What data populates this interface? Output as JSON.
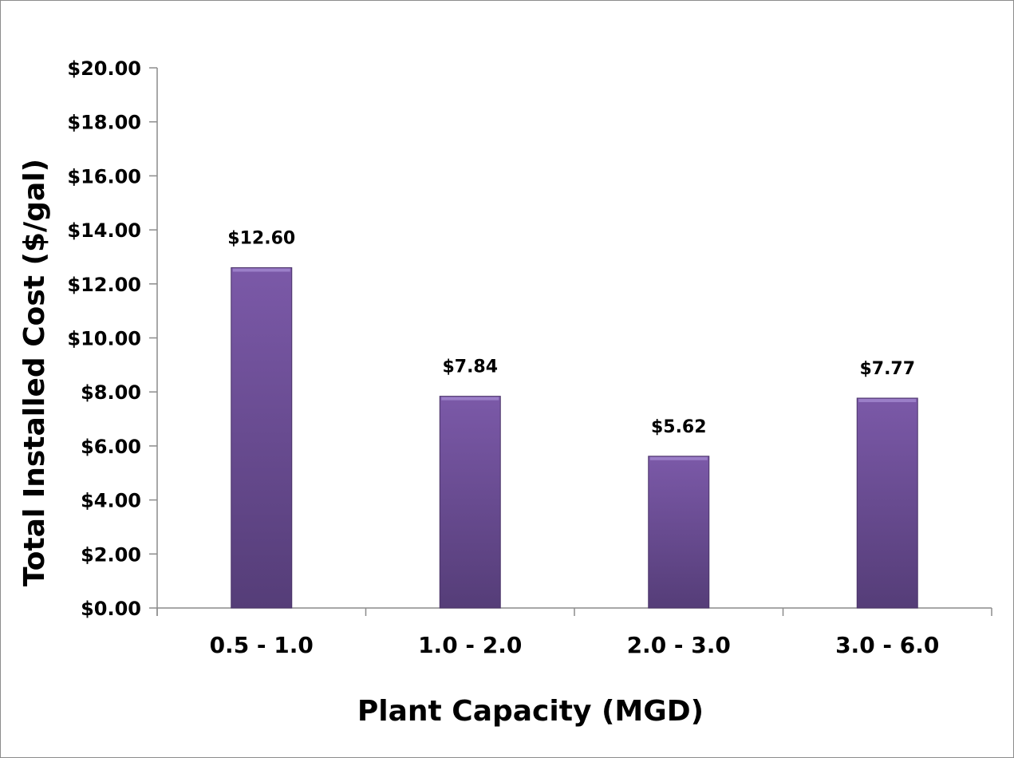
{
  "chart_data": {
    "type": "bar",
    "title": "",
    "xlabel": "Plant Capacity (MGD)",
    "ylabel": "Total Installed Cost ($/gal)",
    "categories": [
      "0.5 - 1.0",
      "1.0 - 2.0",
      "2.0 - 3.0",
      "3.0 - 6.0"
    ],
    "values": [
      12.6,
      7.84,
      5.62,
      7.77
    ],
    "data_labels": [
      "$12.60",
      "$7.84",
      "$5.62",
      "$7.77"
    ],
    "ylim": [
      0,
      20
    ],
    "yticks": [
      0,
      2,
      4,
      6,
      8,
      10,
      12,
      14,
      16,
      18,
      20
    ],
    "ytick_labels": [
      "$0.00",
      "$2.00",
      "$4.00",
      "$6.00",
      "$8.00",
      "$10.00",
      "$12.00",
      "$14.00",
      "$16.00",
      "$18.00",
      "$20.00"
    ],
    "grid": false,
    "legend": "none",
    "colors": {
      "bar_top": "#7b59a8",
      "bar_bottom": "#553d78",
      "axis": "#8c8c8c"
    }
  }
}
